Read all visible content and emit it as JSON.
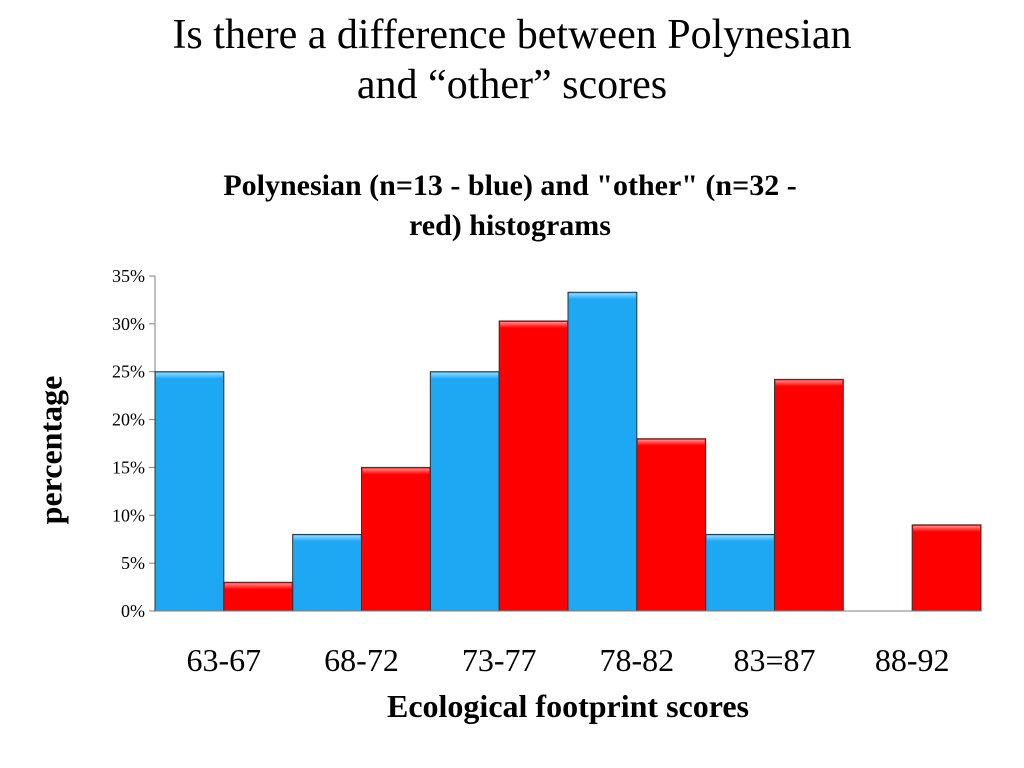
{
  "slide": {
    "title_line1": "Is there a difference between Polynesian",
    "title_line2": "and “other” scores"
  },
  "chart_data": {
    "type": "bar",
    "title_line1": "Polynesian (n=13 - blue) and \"other\"  (n=32 -",
    "title_line2": "red) histograms",
    "xlabel": "Ecological footprint scores",
    "ylabel": "percentage",
    "categories": [
      "63-67",
      "68-72",
      "73-77",
      "78-82",
      "83=87",
      "88-92"
    ],
    "series": [
      {
        "color": "#1ea8f4",
        "values": [
          25,
          8,
          25,
          33.3,
          8,
          0
        ]
      },
      {
        "color": "#ff0000",
        "values": [
          3,
          15,
          30.3,
          18,
          24.2,
          9
        ]
      }
    ],
    "ylim": [
      0,
      35
    ],
    "yticks": [
      0,
      5,
      10,
      15,
      20,
      25,
      30,
      35
    ],
    "ytick_labels": [
      "0%",
      "5%",
      "10%",
      "15%",
      "20%",
      "25%",
      "30%",
      "35%"
    ],
    "grid": false,
    "legend": "none"
  }
}
